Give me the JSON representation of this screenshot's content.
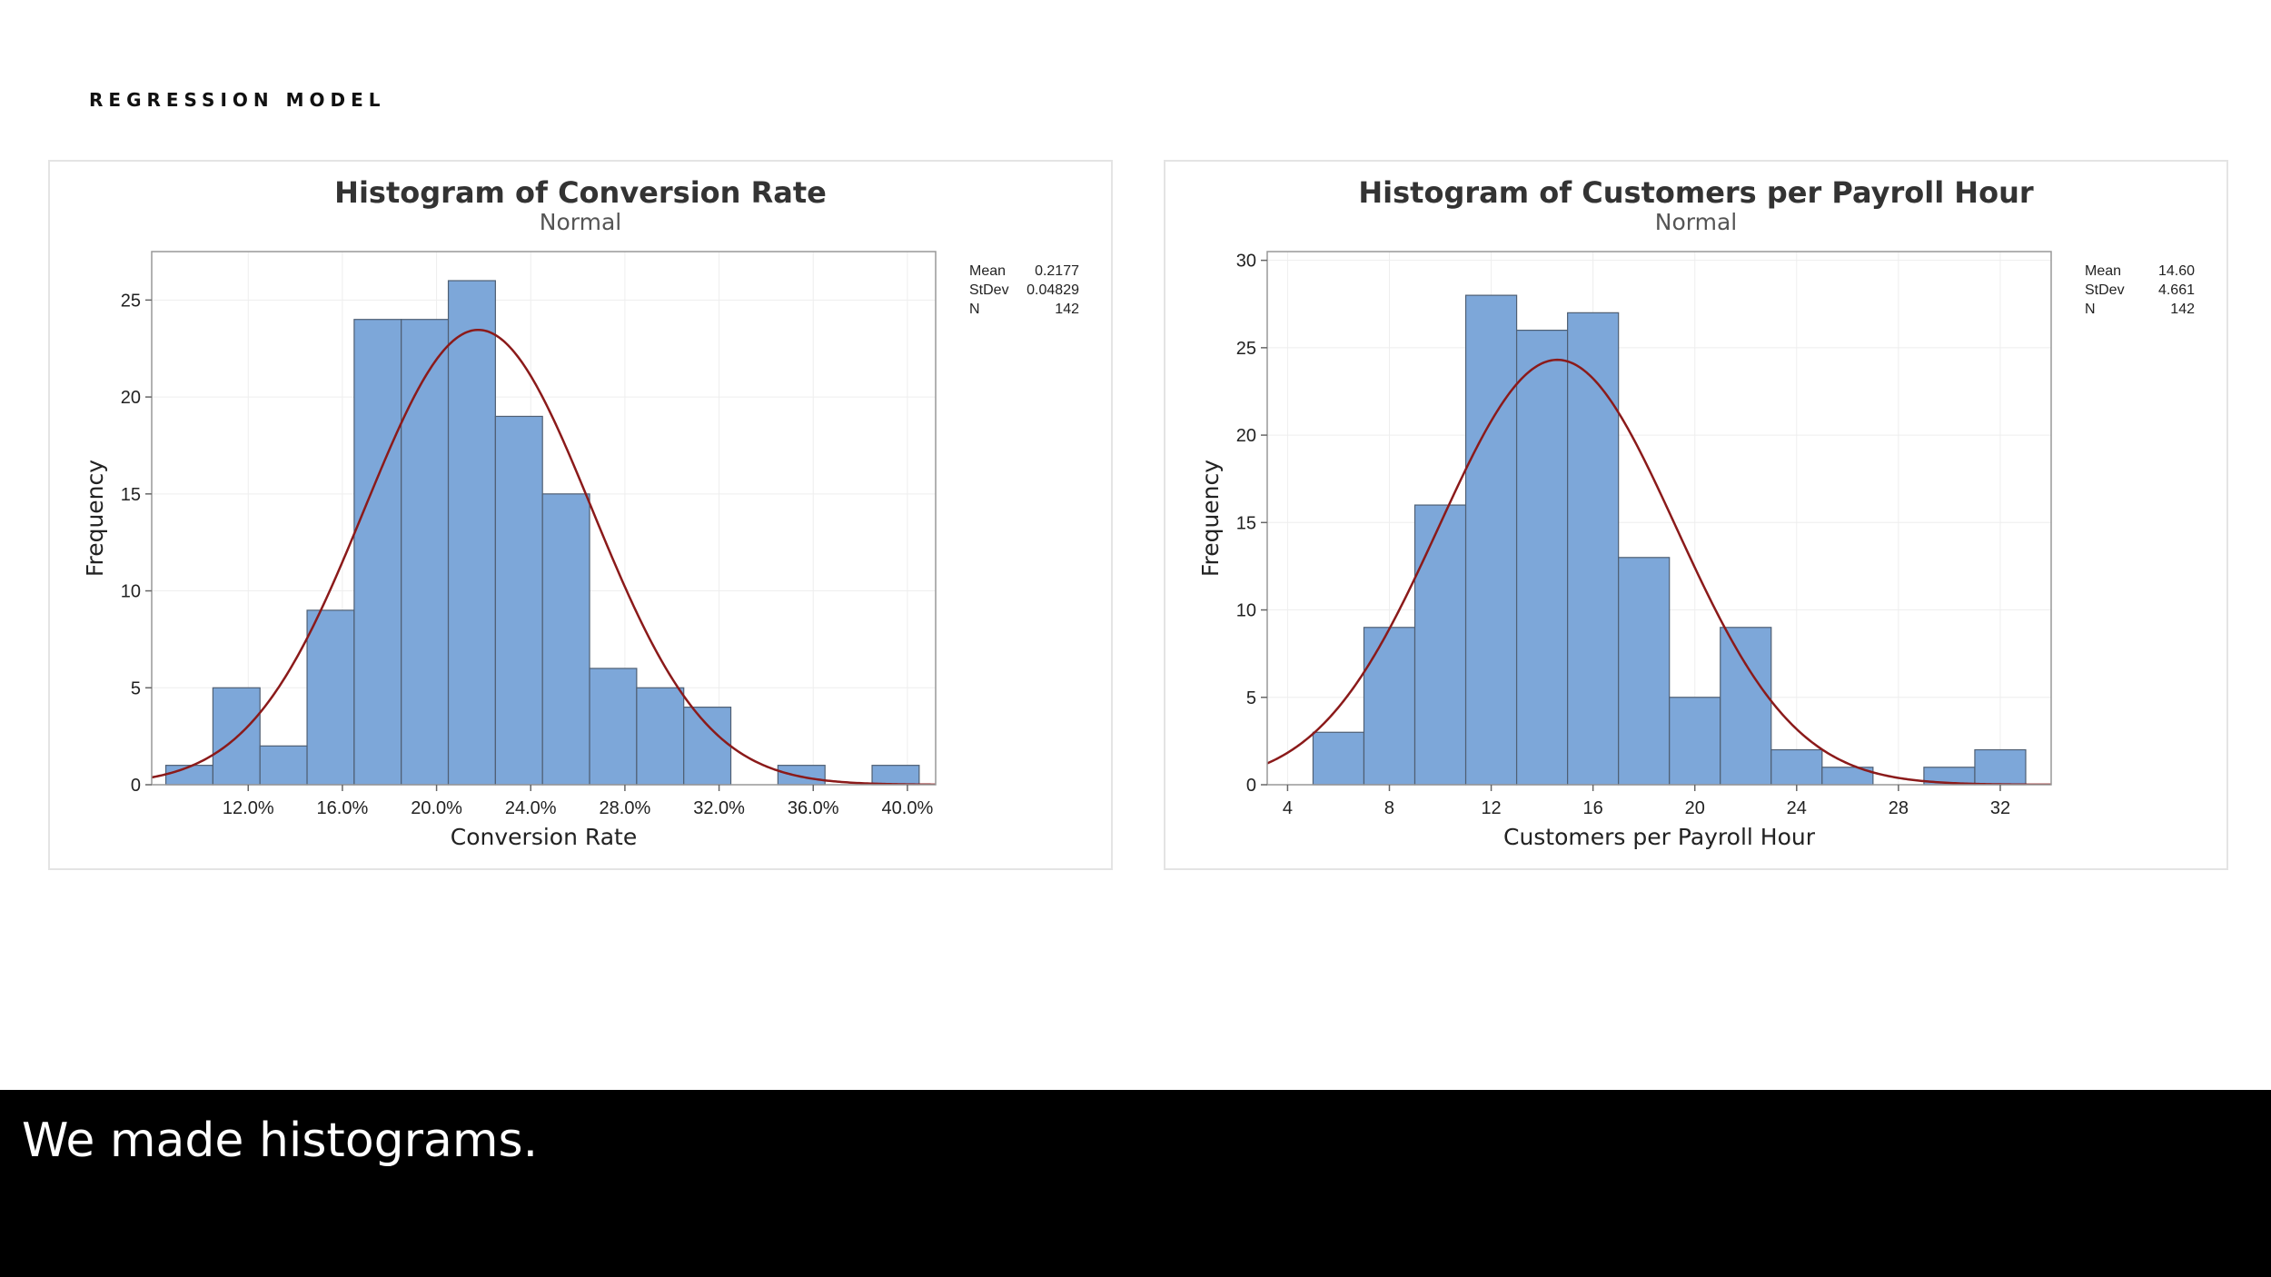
{
  "section_label": "REGRESSION MODEL",
  "caption": "We made histograms.",
  "colors": {
    "bar_fill": "#7da7d9",
    "bar_stroke": "#4f5f73",
    "curve": "#8b1a1a",
    "axis": "#999999",
    "grid": "#eeeeee",
    "title": "#333333",
    "caption_bg": "#000000",
    "caption_text": "#ffffff"
  },
  "chart_data": [
    {
      "type": "histogram",
      "title": "Histogram of Conversion Rate",
      "subtitle": "Normal",
      "xlabel": "Conversion Rate",
      "ylabel": "Frequency",
      "bin_edges": [
        0.085,
        0.105,
        0.125,
        0.145,
        0.165,
        0.185,
        0.205,
        0.225,
        0.245,
        0.265,
        0.285,
        0.305,
        0.325,
        0.345,
        0.365,
        0.385,
        0.405
      ],
      "values": [
        1,
        5,
        2,
        9,
        24,
        24,
        26,
        19,
        15,
        6,
        5,
        4,
        0,
        1,
        0,
        1
      ],
      "xlim": [
        0.079,
        0.412
      ],
      "ylim": [
        0,
        27.5
      ],
      "xticks": [
        0.12,
        0.16,
        0.2,
        0.24,
        0.28,
        0.32,
        0.36,
        0.4
      ],
      "xtick_labels": [
        "12.0%",
        "16.0%",
        "20.0%",
        "24.0%",
        "28.0%",
        "32.0%",
        "36.0%",
        "40.0%"
      ],
      "yticks": [
        0,
        5,
        10,
        15,
        20,
        25
      ],
      "ytick_labels": [
        "0",
        "5",
        "10",
        "15",
        "20",
        "25"
      ],
      "curve": {
        "mean": 0.2177,
        "stdev": 0.04829,
        "n": 142,
        "bin_width": 0.02
      },
      "legend": {
        "position": "top-right",
        "labels": [
          "Mean",
          "StDev",
          "N"
        ],
        "values": [
          "0.2177",
          "0.04829",
          "142"
        ]
      }
    },
    {
      "type": "histogram",
      "title": "Histogram of Customers per Payroll Hour",
      "subtitle": "Normal",
      "xlabel": "Customers per Payroll Hour",
      "ylabel": "Frequency",
      "bin_edges": [
        5,
        7,
        9,
        11,
        13,
        15,
        17,
        19,
        21,
        23,
        25,
        27,
        29,
        31,
        33
      ],
      "values": [
        3,
        9,
        16,
        28,
        26,
        27,
        13,
        5,
        9,
        2,
        1,
        0,
        1,
        2
      ],
      "xlim": [
        3.2,
        34
      ],
      "ylim": [
        0,
        30.5
      ],
      "xticks": [
        4,
        8,
        12,
        16,
        20,
        24,
        28,
        32
      ],
      "xtick_labels": [
        "4",
        "8",
        "12",
        "16",
        "20",
        "24",
        "28",
        "32"
      ],
      "yticks": [
        0,
        5,
        10,
        15,
        20,
        25,
        30
      ],
      "ytick_labels": [
        "0",
        "5",
        "10",
        "15",
        "20",
        "25",
        "30"
      ],
      "curve": {
        "mean": 14.6,
        "stdev": 4.661,
        "n": 142,
        "bin_width": 2
      },
      "legend": {
        "position": "top-right",
        "labels": [
          "Mean",
          "StDev",
          "N"
        ],
        "values": [
          "14.60",
          "4.661",
          "142"
        ]
      }
    }
  ]
}
